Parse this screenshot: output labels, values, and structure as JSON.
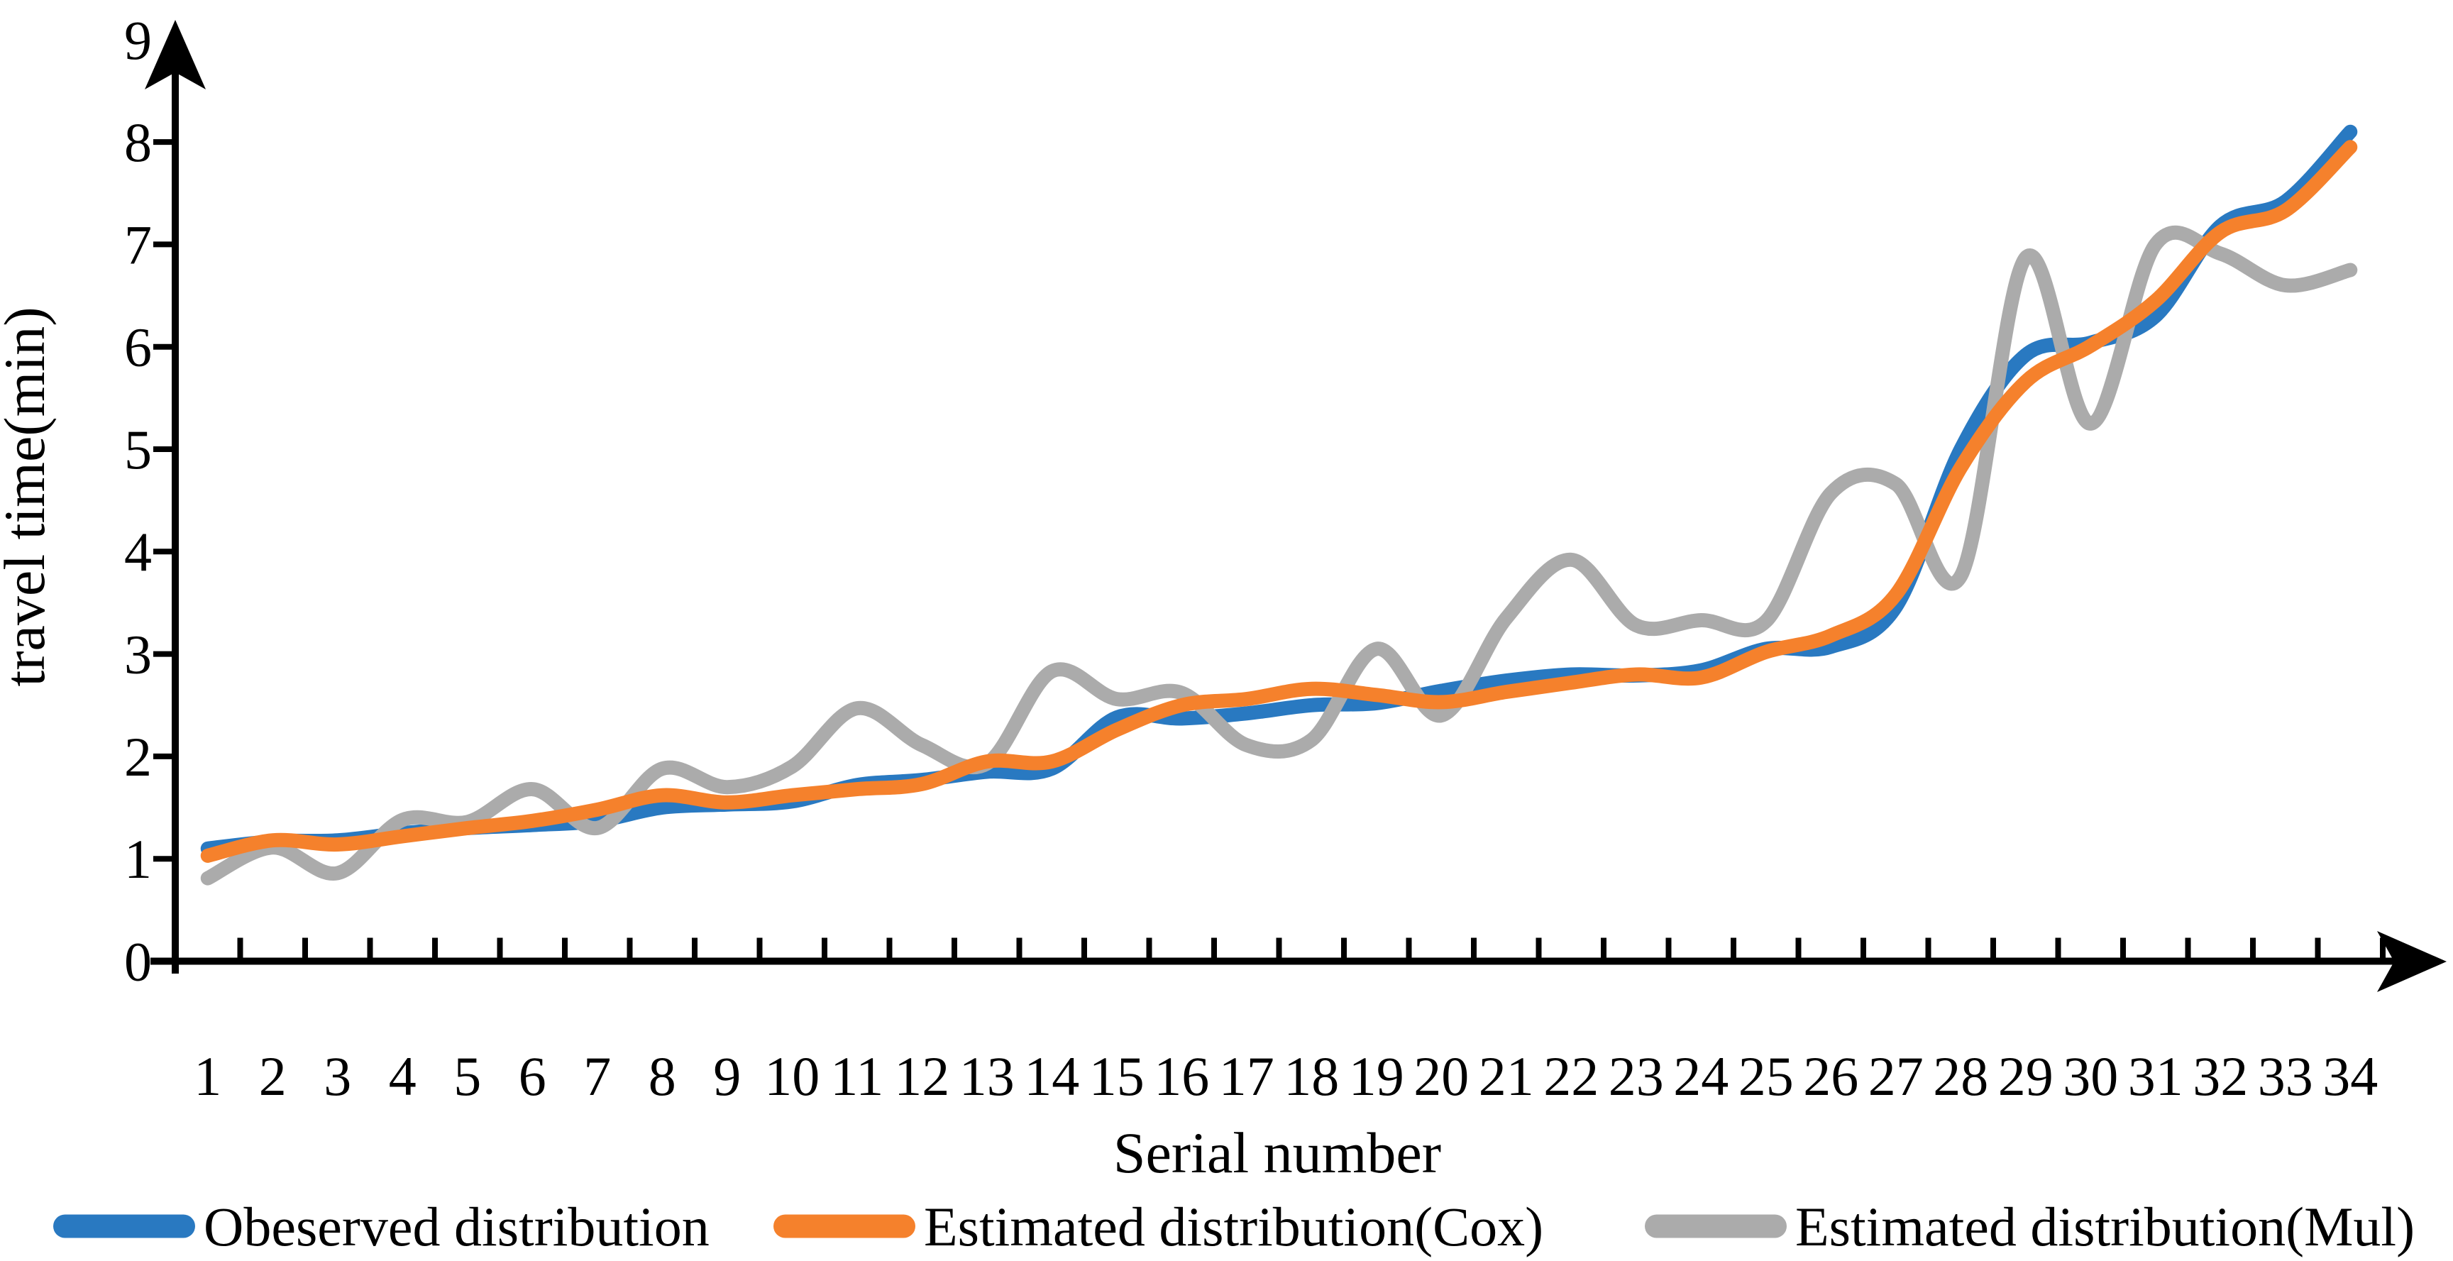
{
  "chart_data": {
    "type": "line",
    "title": "",
    "xlabel": "Serial number",
    "ylabel": "travel time(min)",
    "x": [
      1,
      2,
      3,
      4,
      5,
      6,
      7,
      8,
      9,
      10,
      11,
      12,
      13,
      14,
      15,
      16,
      17,
      18,
      19,
      20,
      21,
      22,
      23,
      24,
      25,
      26,
      27,
      28,
      29,
      30,
      31,
      32,
      33,
      34
    ],
    "ylim": [
      0,
      9
    ],
    "yticks": [
      0,
      1,
      2,
      3,
      4,
      5,
      6,
      7,
      8,
      9
    ],
    "grid": false,
    "legend_position": "bottom",
    "axis_color": "#000000",
    "series": [
      {
        "name": "Obeserved distribution",
        "color": "#2979C1",
        "values": [
          1.1,
          1.17,
          1.18,
          1.25,
          1.3,
          1.33,
          1.37,
          1.5,
          1.53,
          1.56,
          1.72,
          1.77,
          1.85,
          1.88,
          2.38,
          2.37,
          2.42,
          2.5,
          2.52,
          2.64,
          2.74,
          2.8,
          2.79,
          2.84,
          3.05,
          3.07,
          3.46,
          5.0,
          5.92,
          6.04,
          6.3,
          7.18,
          7.42,
          8.1
        ]
      },
      {
        "name": "Estimated distribution(Cox)",
        "color": "#F5812C",
        "values": [
          1.03,
          1.18,
          1.14,
          1.22,
          1.3,
          1.37,
          1.48,
          1.62,
          1.55,
          1.62,
          1.68,
          1.73,
          1.95,
          1.95,
          2.26,
          2.5,
          2.56,
          2.66,
          2.6,
          2.53,
          2.63,
          2.72,
          2.8,
          2.77,
          3.02,
          3.18,
          3.58,
          4.82,
          5.66,
          6.01,
          6.45,
          7.12,
          7.33,
          7.95
        ]
      },
      {
        "name": "Estimated distribution(Mul)",
        "color": "#ABABAB",
        "values": [
          0.81,
          1.11,
          0.86,
          1.38,
          1.36,
          1.68,
          1.3,
          1.88,
          1.7,
          1.9,
          2.47,
          2.11,
          1.93,
          2.83,
          2.56,
          2.62,
          2.11,
          2.16,
          3.05,
          2.4,
          3.35,
          3.92,
          3.28,
          3.33,
          3.32,
          4.57,
          4.66,
          3.76,
          6.87,
          5.25,
          7.0,
          6.91,
          6.6,
          6.75
        ]
      }
    ]
  }
}
